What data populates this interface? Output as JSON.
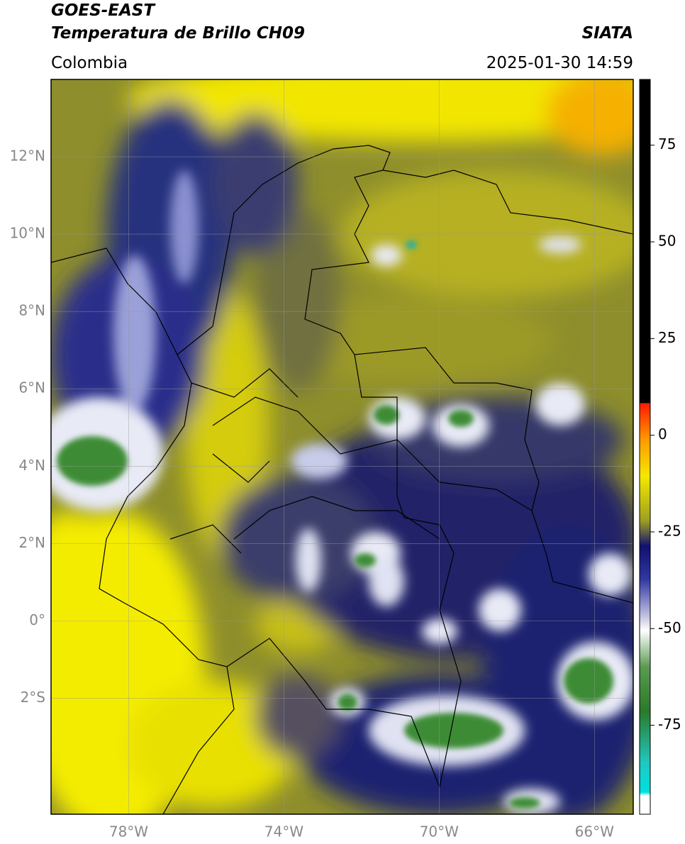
{
  "header": {
    "satellite": "GOES-EAST",
    "product": "Temperatura de Brillo CH09",
    "source": "SIATA",
    "region": "Colombia",
    "datetime": "2025-01-30 14:59"
  },
  "map": {
    "lon_range": [
      -80,
      -65
    ],
    "lat_range": [
      -5,
      14
    ],
    "lat_ticks": [
      {
        "value": 12,
        "label": "12°N"
      },
      {
        "value": 10,
        "label": "10°N"
      },
      {
        "value": 8,
        "label": "8°N"
      },
      {
        "value": 6,
        "label": "6°N"
      },
      {
        "value": 4,
        "label": "4°N"
      },
      {
        "value": 2,
        "label": "2°N"
      },
      {
        "value": 0,
        "label": "0°"
      },
      {
        "value": -2,
        "label": "2°S"
      }
    ],
    "lon_ticks": [
      {
        "value": -78,
        "label": "78°W"
      },
      {
        "value": -74,
        "label": "74°W"
      },
      {
        "value": -70,
        "label": "70°W"
      },
      {
        "value": -66,
        "label": "66°W"
      }
    ]
  },
  "colorbar": {
    "range": [
      -98,
      92
    ],
    "ticks": [
      75,
      50,
      25,
      0,
      -25,
      -50,
      -75
    ]
  }
}
